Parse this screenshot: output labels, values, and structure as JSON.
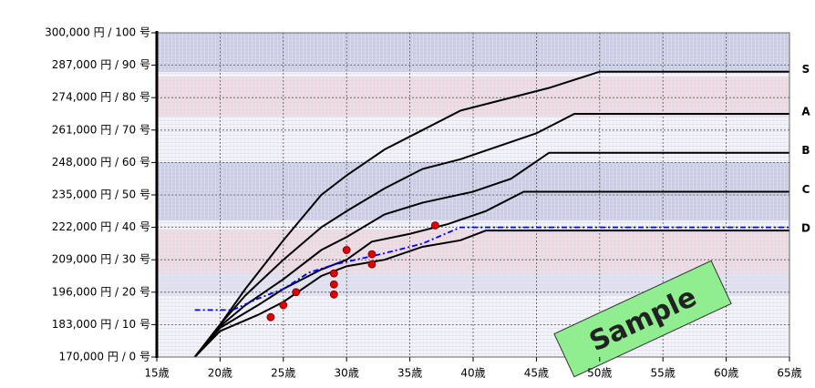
{
  "chart_data": {
    "type": "line",
    "xlim": [
      15,
      65
    ],
    "xticks": [
      {
        "value": 15,
        "label": "15歳"
      },
      {
        "value": 20,
        "label": "20歳"
      },
      {
        "value": 25,
        "label": "25歳"
      },
      {
        "value": 30,
        "label": "30歳"
      },
      {
        "value": 35,
        "label": "35歳"
      },
      {
        "value": 40,
        "label": "40歳"
      },
      {
        "value": 45,
        "label": "45歳"
      },
      {
        "value": 50,
        "label": "50歳"
      },
      {
        "value": 55,
        "label": "55歳"
      },
      {
        "value": 60,
        "label": "60歳"
      },
      {
        "value": 65,
        "label": "65歳"
      }
    ],
    "ylim": [
      0,
      100
    ],
    "yticks": [
      {
        "value": 0,
        "label": "170,000 円 /   0 号"
      },
      {
        "value": 10,
        "label": "183,000 円 /  10 号"
      },
      {
        "value": 20,
        "label": "196,000 円 /  20 号"
      },
      {
        "value": 30,
        "label": "209,000 円 /  30 号"
      },
      {
        "value": 40,
        "label": "222,000 円 /  40 号"
      },
      {
        "value": 50,
        "label": "235,000 円 /  50 号"
      },
      {
        "value": 60,
        "label": "248,000 円 /  60 号"
      },
      {
        "value": 70,
        "label": "261,000 円 /  70 号"
      },
      {
        "value": 80,
        "label": "274,000 円 /  80 号"
      },
      {
        "value": 90,
        "label": "287,000 円 /  90 号"
      },
      {
        "value": 100,
        "label": "300,000 円 / 100 号"
      }
    ],
    "grid": true,
    "annotation": "Sample",
    "series": [
      {
        "name": "S",
        "color": "#000000",
        "style": "solid",
        "x": [
          18,
          20,
          22,
          25,
          28,
          30,
          33,
          36,
          39,
          42,
          46,
          50,
          65
        ],
        "values": [
          0,
          10,
          21,
          36,
          50,
          56,
          64,
          70,
          76,
          79,
          83,
          88,
          88
        ]
      },
      {
        "name": "A",
        "color": "#000000",
        "style": "solid",
        "x": [
          18,
          20,
          22,
          25,
          28,
          30,
          33,
          36,
          39,
          42,
          45,
          48,
          65
        ],
        "values": [
          0,
          10,
          19,
          30,
          40,
          45,
          52,
          58,
          61,
          65,
          69,
          75,
          75
        ]
      },
      {
        "name": "B",
        "color": "#000000",
        "style": "solid",
        "x": [
          18,
          20,
          22,
          25,
          28,
          30,
          33,
          36,
          40,
          43,
          46,
          65
        ],
        "values": [
          0,
          9.5,
          16,
          24,
          33,
          37,
          44,
          47.6,
          51,
          55,
          63,
          63
        ]
      },
      {
        "name": "C",
        "color": "#000000",
        "style": "solid",
        "x": [
          18,
          20,
          23,
          25,
          28,
          30,
          32,
          35,
          38,
          41,
          44,
          65
        ],
        "values": [
          0,
          9,
          16,
          21,
          27,
          30,
          35.6,
          38,
          41,
          45,
          51,
          51
        ]
      },
      {
        "name": "D",
        "color": "#000000",
        "style": "solid",
        "x": [
          18,
          20,
          23,
          25,
          28,
          30,
          33,
          36,
          39,
          41,
          65
        ],
        "values": [
          0,
          8,
          13,
          17,
          25,
          28,
          30,
          34,
          36,
          39,
          39
        ]
      },
      {
        "color": "#0000ff",
        "style": "dashed",
        "x": [
          18,
          21,
          23,
          25,
          27,
          29,
          33,
          36,
          39,
          65
        ],
        "values": [
          14.5,
          14.5,
          18,
          21,
          26,
          28.5,
          32,
          35,
          40,
          40
        ]
      },
      {
        "color": "#e00000",
        "style": "points",
        "x": [
          24,
          25,
          26,
          29,
          29,
          29,
          30,
          32,
          32,
          37
        ],
        "values": [
          12.3,
          16,
          20,
          19.3,
          22.4,
          25.8,
          33,
          31.7,
          28.6,
          40.6
        ]
      }
    ]
  }
}
